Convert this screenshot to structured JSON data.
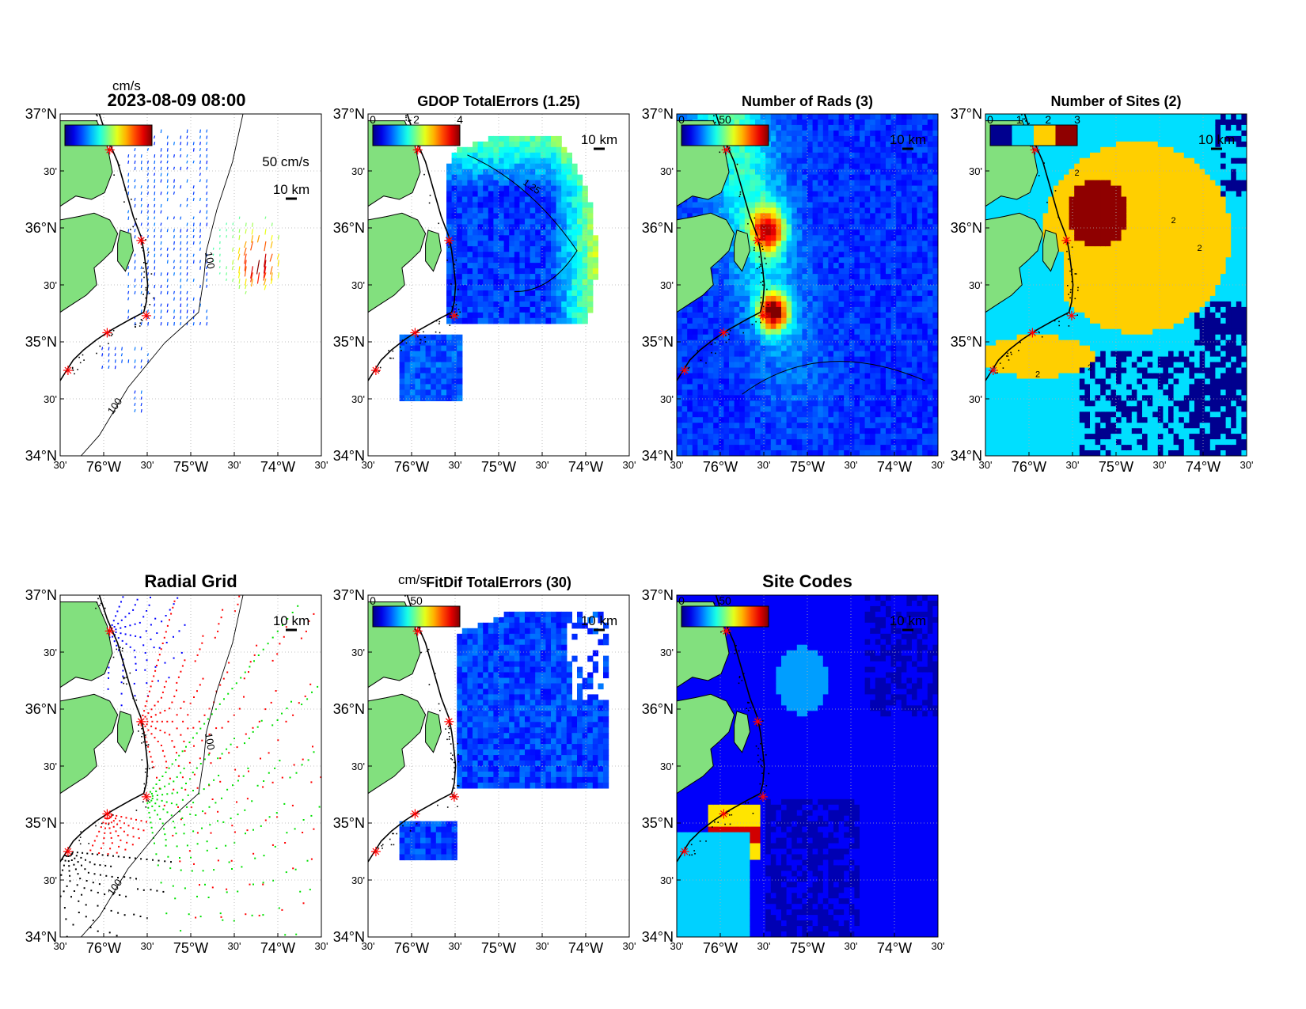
{
  "figure": {
    "timestamp": "2023-08-09 08:00",
    "lat_ticks": [
      "37°N",
      "30'",
      "36°N",
      "30'",
      "35°N",
      "30'",
      "34°N"
    ],
    "lon_ticks": [
      "30'",
      "76°W",
      "30'",
      "75°W",
      "30'",
      "74°W",
      "30'"
    ],
    "scale_bar_label": "10 km",
    "colors": {
      "land": "#82e07e",
      "coast": "#000000",
      "site_marker": "#ff0000",
      "radial_site_1": "#0000ff",
      "radial_site_2": "#ff0000",
      "radial_site_3": "#00e000",
      "radial_site_4": "#000000",
      "colormap": "jet"
    }
  },
  "chart_data": [
    {
      "id": "total-currents",
      "type": "quiver-map",
      "title": "2023-08-09 08:00",
      "colorbar": {
        "unit": "cm/s"
      },
      "vector_scale_label": "50 cm/s",
      "contour_labels": [
        "100",
        "100"
      ],
      "xlim": [
        -76.5,
        -73.5
      ],
      "ylim": [
        34.0,
        37.0
      ]
    },
    {
      "id": "gdop",
      "type": "heatmap-map",
      "title": "GDOP TotalErrors (1.25)",
      "colorbar": {
        "ticks": [
          "0",
          "2",
          "4"
        ],
        "range": [
          0,
          4
        ]
      },
      "contour_level": "1.25",
      "xlim": [
        -76.5,
        -73.5
      ],
      "ylim": [
        34.0,
        37.0
      ]
    },
    {
      "id": "num-rads",
      "type": "heatmap-map",
      "title": "Number of Rads (3)",
      "colorbar": {
        "ticks": [
          "0",
          "50"
        ],
        "range": [
          0,
          100
        ]
      },
      "xlim": [
        -76.5,
        -73.5
      ],
      "ylim": [
        34.0,
        37.0
      ]
    },
    {
      "id": "num-sites",
      "type": "heatmap-map",
      "title": "Number of Sites (2)",
      "colorbar": {
        "ticks": [
          "0",
          "1",
          "2",
          "3"
        ],
        "range": [
          0,
          3
        ]
      },
      "contour_level": "2",
      "xlim": [
        -76.5,
        -73.5
      ],
      "ylim": [
        34.0,
        37.0
      ]
    },
    {
      "id": "radial-grid",
      "type": "scatter-map",
      "title": "Radial Grid",
      "contour_labels": [
        "100",
        "100"
      ],
      "xlim": [
        -76.5,
        -73.5
      ],
      "ylim": [
        34.0,
        37.0
      ]
    },
    {
      "id": "fitdif",
      "type": "heatmap-map",
      "title": "FitDif TotalErrors (30)",
      "colorbar": {
        "unit": "cm/s",
        "ticks": [
          "0",
          "50"
        ],
        "range": [
          0,
          100
        ]
      },
      "xlim": [
        -76.5,
        -73.5
      ],
      "ylim": [
        34.0,
        37.0
      ]
    },
    {
      "id": "site-codes",
      "type": "heatmap-map",
      "title": "Site Codes",
      "colorbar": {
        "ticks": [
          "0",
          "50"
        ],
        "range": [
          0,
          100
        ]
      },
      "xlim": [
        -76.5,
        -73.5
      ],
      "ylim": [
        34.0,
        37.0
      ]
    }
  ]
}
